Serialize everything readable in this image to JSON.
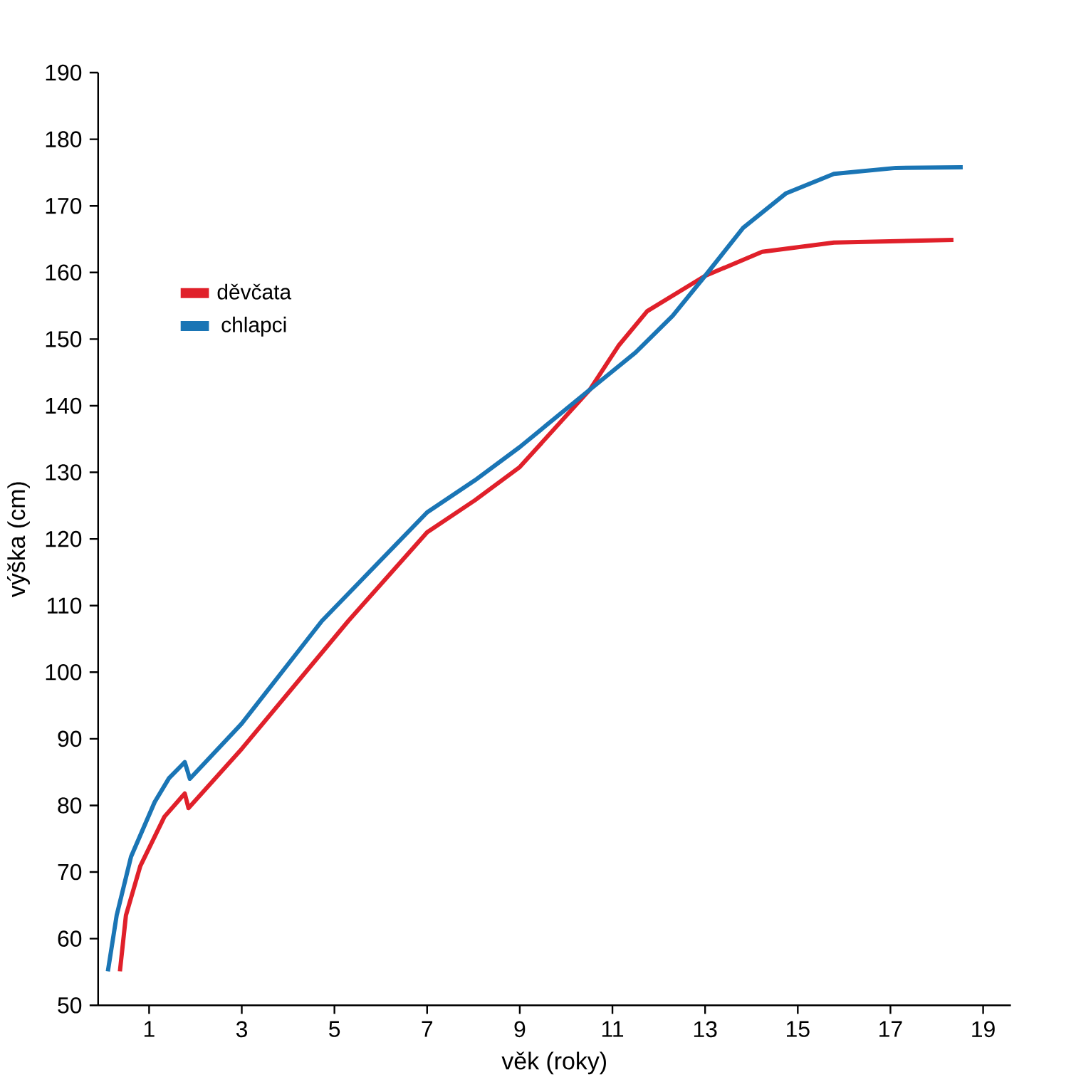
{
  "chart_data": {
    "type": "line",
    "xlabel": "věk (roky)",
    "ylabel": "výška (cm)",
    "xlim": [
      -0.1,
      19.6
    ],
    "ylim": [
      50,
      190
    ],
    "xticks": [
      1,
      3,
      5,
      7,
      9,
      11,
      13,
      15,
      17,
      19
    ],
    "yticks": [
      50,
      60,
      70,
      80,
      90,
      100,
      110,
      120,
      130,
      140,
      150,
      160,
      170,
      180,
      190
    ],
    "legend": "left",
    "grid": false,
    "marker": "none",
    "line_style": "solid",
    "series": [
      {
        "name": "děvčata",
        "color": "#e0202a",
        "x": [
          0.37,
          0.5,
          0.81,
          1.33,
          1.77,
          1.85,
          3,
          5.3,
          7,
          8.03,
          9,
          10.51,
          11.13,
          11.75,
          13.0,
          14.23,
          15.78,
          18.36
        ],
        "values": [
          55.1,
          63.5,
          70.9,
          78.3,
          81.8,
          79.6,
          88.5,
          107.7,
          121,
          125.8,
          130.8,
          142.4,
          149.0,
          154.2,
          159.5,
          163.1,
          164.5,
          164.9
        ]
      },
      {
        "name": "chlapci",
        "color": "#1a75b5",
        "x": [
          0.11,
          0.3,
          0.61,
          1.12,
          1.43,
          1.77,
          1.88,
          3,
          4.73,
          7,
          8.03,
          9,
          10.51,
          11.5,
          12.3,
          13.0,
          13.82,
          14.75,
          15.78,
          17.12,
          18.56
        ],
        "values": [
          55.1,
          63.5,
          72.3,
          80.5,
          84.1,
          86.5,
          84.0,
          92.3,
          107.7,
          124,
          128.8,
          133.8,
          142.4,
          148,
          153.5,
          159.5,
          166.7,
          171.9,
          174.8,
          175.7,
          175.8
        ]
      }
    ]
  }
}
